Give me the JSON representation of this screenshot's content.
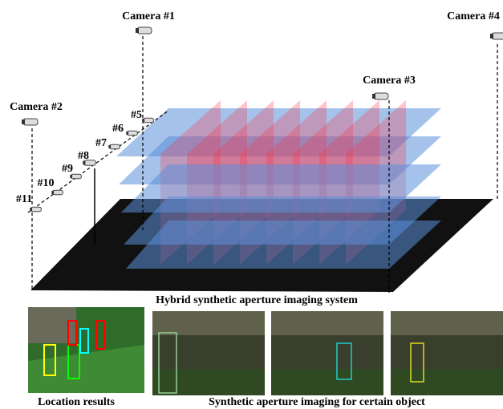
{
  "cameras": [
    "Camera #1",
    "Camera #2",
    "Camera #3",
    "Camera #4"
  ],
  "array_cameras": [
    "#5",
    "#6",
    "#7",
    "#8",
    "#9",
    "#10",
    "#11"
  ],
  "captions": {
    "system": "Hybrid synthetic aperture imaging system",
    "location": "Location results",
    "imaging": "Synthetic aperture imaging for certain object"
  }
}
